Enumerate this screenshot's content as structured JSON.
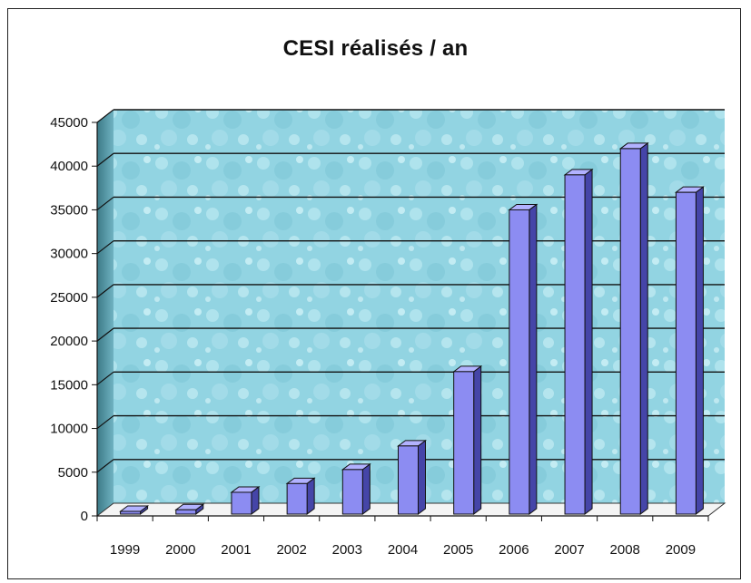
{
  "chart_data": {
    "type": "bar",
    "title": "CESI réalisés / an",
    "categories": [
      "1999",
      "2000",
      "2001",
      "2002",
      "2003",
      "2004",
      "2005",
      "2006",
      "2007",
      "2008",
      "2009"
    ],
    "values": [
      100,
      700,
      2700,
      3700,
      5300,
      8000,
      16500,
      35000,
      39000,
      42000,
      37000
    ],
    "ylim": [
      0,
      45000
    ],
    "yticks": [
      "0",
      "5000",
      "10000",
      "15000",
      "20000",
      "25000",
      "30000",
      "35000",
      "40000",
      "45000"
    ],
    "grid": true,
    "legend": "none",
    "colors": {
      "bar_front": "#8c8cf2",
      "bar_side": "#4545a8",
      "bar_top": "#b2b2ff",
      "wall": "#8fd0de",
      "grid": "#111111"
    }
  }
}
